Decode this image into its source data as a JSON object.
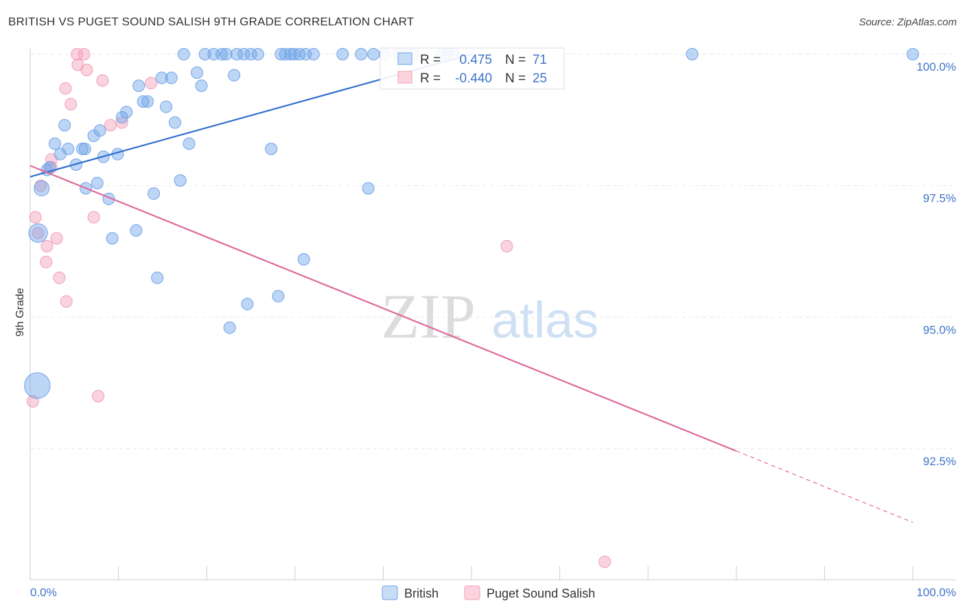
{
  "header": {
    "title": "BRITISH VS PUGET SOUND SALISH 9TH GRADE CORRELATION CHART",
    "source": "Source: ZipAtlas.com"
  },
  "watermark": {
    "zip": "ZIP",
    "atlas": "atlas"
  },
  "colors": {
    "british": "#6ea3e8",
    "british_line": "#2f6fcf",
    "salish": "#f29db6",
    "salish_line": "#e0689a",
    "tick_text": "#3f74c8"
  },
  "stats": {
    "british": {
      "r_label": "R =",
      "r_value": "0.475",
      "n_label": "N =",
      "n_value": "71"
    },
    "salish": {
      "r_label": "R =",
      "r_value": "-0.440",
      "n_label": "N =",
      "n_value": "25"
    }
  },
  "chart_data": {
    "type": "scatter",
    "title": "BRITISH VS PUGET SOUND SALISH 9TH GRADE CORRELATION CHART",
    "xlabel": "",
    "ylabel": "9th Grade",
    "xlim": [
      0,
      100
    ],
    "ylim": [
      89.8,
      100.2
    ],
    "x_tick_labels": [
      "0.0%",
      "100.0%"
    ],
    "y_ticks": [
      92.5,
      95.0,
      97.5,
      100.0
    ],
    "y_tick_labels": [
      "92.5%",
      "95.0%",
      "97.5%",
      "100.0%"
    ],
    "legend": [
      "British",
      "Puget Sound Salish"
    ],
    "series": [
      {
        "name": "British",
        "r": 0.475,
        "n": 71,
        "trend": {
          "x0": 0,
          "y0": 97.67,
          "x1": 50,
          "y1": 100.0,
          "style": "solid"
        },
        "points": [
          {
            "x": 0.8,
            "y": 93.7,
            "s": 2.2
          },
          {
            "x": 0.9,
            "y": 96.6,
            "s": 1.6
          },
          {
            "x": 1.3,
            "y": 97.45,
            "s": 1.3
          },
          {
            "x": 1.9,
            "y": 97.8
          },
          {
            "x": 2.2,
            "y": 97.85
          },
          {
            "x": 2.8,
            "y": 98.3
          },
          {
            "x": 3.4,
            "y": 98.1
          },
          {
            "x": 3.9,
            "y": 98.65
          },
          {
            "x": 4.3,
            "y": 98.2
          },
          {
            "x": 5.2,
            "y": 97.9
          },
          {
            "x": 5.9,
            "y": 98.2
          },
          {
            "x": 6.2,
            "y": 98.2
          },
          {
            "x": 6.3,
            "y": 97.45
          },
          {
            "x": 7.2,
            "y": 98.45
          },
          {
            "x": 7.6,
            "y": 97.55
          },
          {
            "x": 7.9,
            "y": 98.55
          },
          {
            "x": 8.3,
            "y": 98.05
          },
          {
            "x": 8.9,
            "y": 97.25
          },
          {
            "x": 9.3,
            "y": 96.5
          },
          {
            "x": 9.9,
            "y": 98.1
          },
          {
            "x": 10.4,
            "y": 98.8
          },
          {
            "x": 10.9,
            "y": 98.9
          },
          {
            "x": 12.0,
            "y": 96.65
          },
          {
            "x": 12.3,
            "y": 99.4
          },
          {
            "x": 12.8,
            "y": 99.1
          },
          {
            "x": 13.3,
            "y": 99.1
          },
          {
            "x": 14.0,
            "y": 97.35
          },
          {
            "x": 14.4,
            "y": 95.75
          },
          {
            "x": 14.9,
            "y": 99.55
          },
          {
            "x": 15.4,
            "y": 99.0
          },
          {
            "x": 16.0,
            "y": 99.55
          },
          {
            "x": 16.4,
            "y": 98.7
          },
          {
            "x": 17.0,
            "y": 97.6
          },
          {
            "x": 17.4,
            "y": 100.0
          },
          {
            "x": 18.0,
            "y": 98.3
          },
          {
            "x": 18.9,
            "y": 99.65
          },
          {
            "x": 19.4,
            "y": 99.4
          },
          {
            "x": 19.8,
            "y": 100.0
          },
          {
            "x": 20.8,
            "y": 100.0
          },
          {
            "x": 21.7,
            "y": 100.0
          },
          {
            "x": 22.2,
            "y": 100.0
          },
          {
            "x": 22.6,
            "y": 94.8
          },
          {
            "x": 23.1,
            "y": 99.6
          },
          {
            "x": 23.4,
            "y": 100.0
          },
          {
            "x": 24.2,
            "y": 100.0
          },
          {
            "x": 24.6,
            "y": 95.25
          },
          {
            "x": 25.0,
            "y": 100.0
          },
          {
            "x": 25.8,
            "y": 100.0
          },
          {
            "x": 27.3,
            "y": 98.2
          },
          {
            "x": 28.1,
            "y": 95.4
          },
          {
            "x": 28.4,
            "y": 100.0
          },
          {
            "x": 28.9,
            "y": 100.0
          },
          {
            "x": 29.5,
            "y": 100.0
          },
          {
            "x": 29.9,
            "y": 100.0
          },
          {
            "x": 30.5,
            "y": 100.0
          },
          {
            "x": 31.2,
            "y": 100.0
          },
          {
            "x": 31.0,
            "y": 96.1
          },
          {
            "x": 32.1,
            "y": 100.0
          },
          {
            "x": 35.4,
            "y": 100.0
          },
          {
            "x": 37.5,
            "y": 100.0
          },
          {
            "x": 38.3,
            "y": 97.45
          },
          {
            "x": 38.9,
            "y": 100.0
          },
          {
            "x": 40.2,
            "y": 100.0
          },
          {
            "x": 41.8,
            "y": 100.0
          },
          {
            "x": 42.6,
            "y": 100.0
          },
          {
            "x": 43.4,
            "y": 100.0
          },
          {
            "x": 46.6,
            "y": 100.0
          },
          {
            "x": 47.3,
            "y": 100.0
          },
          {
            "x": 75.0,
            "y": 100.0
          },
          {
            "x": 100.0,
            "y": 100.0
          },
          {
            "x": 48.0,
            "y": 100.0
          }
        ]
      },
      {
        "name": "Puget Sound Salish",
        "r": -0.44,
        "n": 25,
        "trend": {
          "x0": 0,
          "y0": 97.88,
          "x1": 100,
          "y1": 91.1,
          "solid_until_x": 80
        },
        "points": [
          {
            "x": 0.3,
            "y": 93.4
          },
          {
            "x": 0.6,
            "y": 96.9
          },
          {
            "x": 0.9,
            "y": 96.6
          },
          {
            "x": 1.2,
            "y": 97.5
          },
          {
            "x": 1.8,
            "y": 96.05
          },
          {
            "x": 1.9,
            "y": 96.35
          },
          {
            "x": 2.4,
            "y": 97.85
          },
          {
            "x": 2.4,
            "y": 98.0
          },
          {
            "x": 3.0,
            "y": 96.5
          },
          {
            "x": 3.3,
            "y": 95.75
          },
          {
            "x": 4.0,
            "y": 99.35
          },
          {
            "x": 4.1,
            "y": 95.3
          },
          {
            "x": 4.6,
            "y": 99.05
          },
          {
            "x": 5.3,
            "y": 100.0
          },
          {
            "x": 5.4,
            "y": 99.8
          },
          {
            "x": 6.1,
            "y": 100.0
          },
          {
            "x": 6.4,
            "y": 99.7
          },
          {
            "x": 7.2,
            "y": 96.9
          },
          {
            "x": 7.7,
            "y": 93.5
          },
          {
            "x": 8.2,
            "y": 99.5
          },
          {
            "x": 9.1,
            "y": 98.65
          },
          {
            "x": 10.4,
            "y": 98.7
          },
          {
            "x": 13.7,
            "y": 99.45
          },
          {
            "x": 54.0,
            "y": 96.35
          },
          {
            "x": 65.1,
            "y": 90.35
          }
        ]
      }
    ]
  }
}
